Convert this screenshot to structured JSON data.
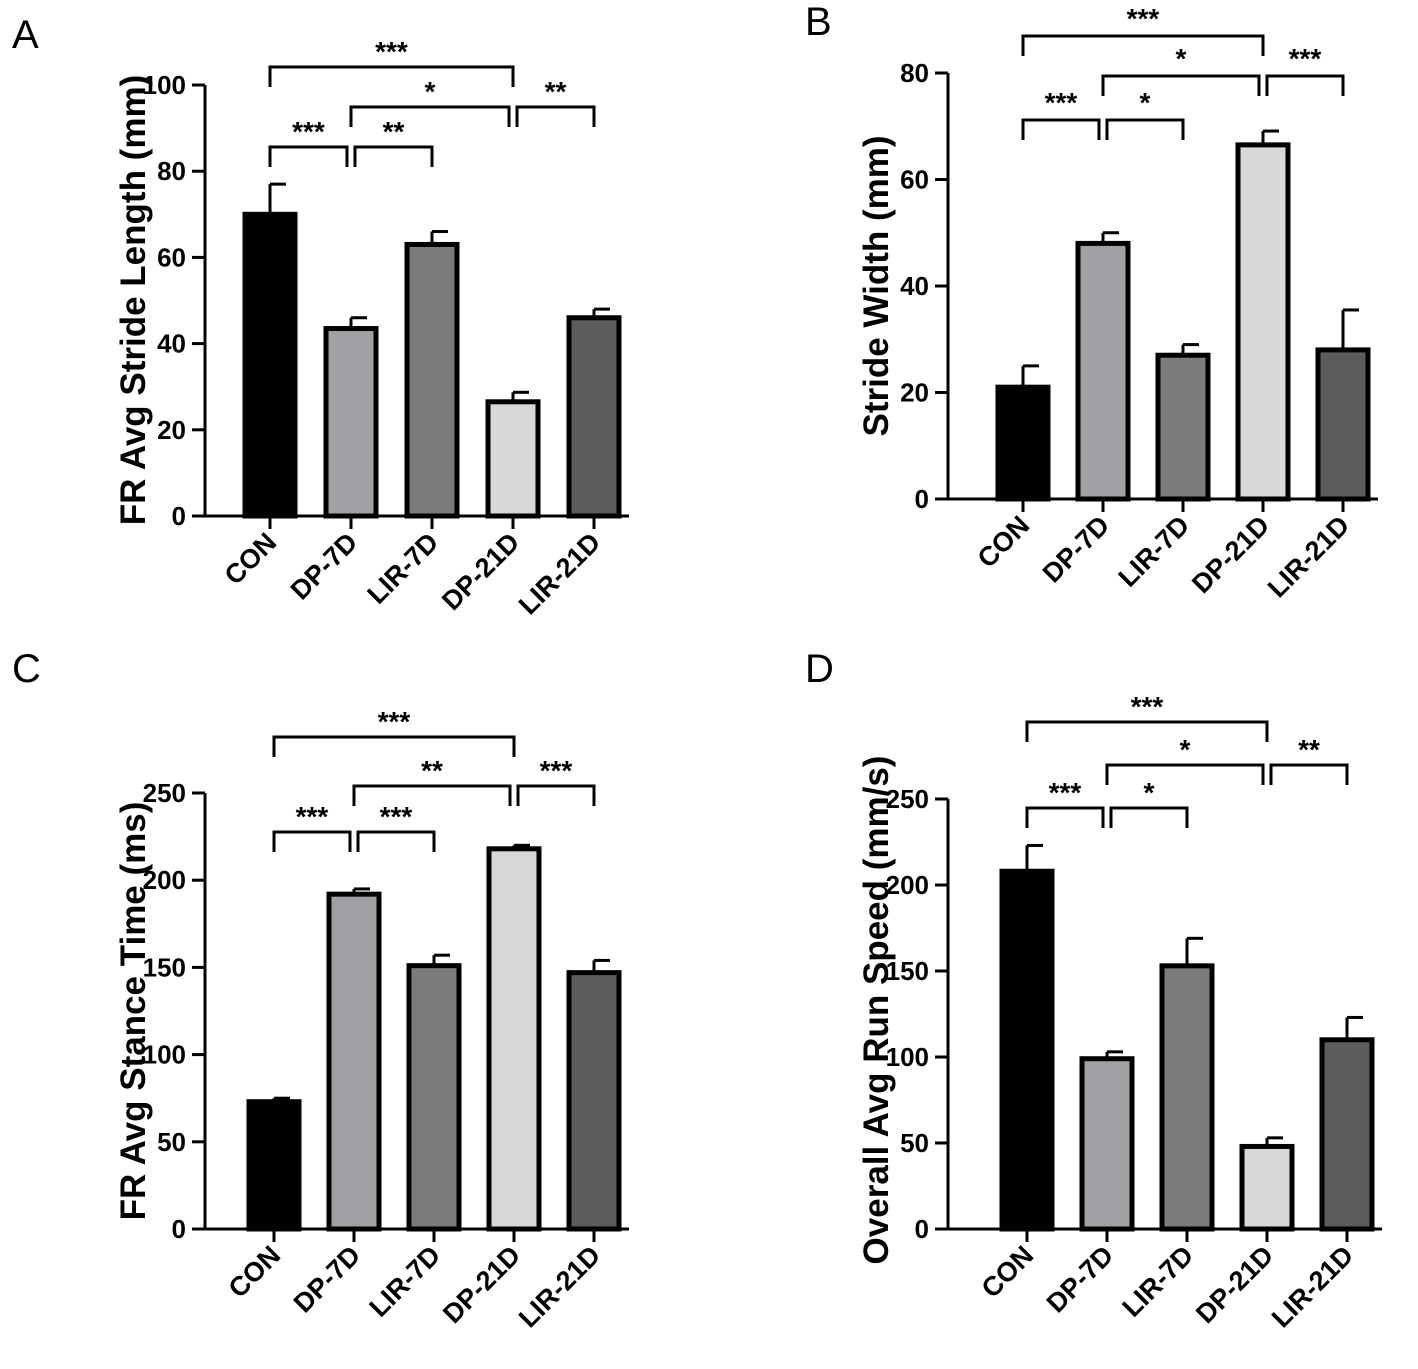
{
  "chart_data": [
    {
      "panel": "A",
      "type": "bar",
      "title": "",
      "xlabel": "",
      "ylabel": "FR Avg Stride Length (mm)",
      "categories": [
        "CON",
        "DP-7D",
        "LIR-7D",
        "DP-21D",
        "LIR-21D"
      ],
      "values": [
        70,
        43.5,
        63,
        26.5,
        46
      ],
      "errors": [
        7,
        2.5,
        3,
        2.2,
        2
      ],
      "colors": [
        "#000000",
        "#a1a1a5",
        "#7b7b7b",
        "#d8d8d8",
        "#5c5c5c"
      ],
      "ylim": [
        0,
        100
      ],
      "yticks": [
        0,
        20,
        40,
        60,
        80,
        100
      ],
      "significance": [
        {
          "from": 0,
          "to": 3,
          "label": "***"
        },
        {
          "from": 1,
          "to": 3,
          "label": "*"
        },
        {
          "from": 3,
          "to": 4,
          "label": "**"
        },
        {
          "from": 0,
          "to": 1,
          "label": "***"
        },
        {
          "from": 1,
          "to": 2,
          "label": "**"
        }
      ]
    },
    {
      "panel": "B",
      "type": "bar",
      "title": "",
      "xlabel": "",
      "ylabel": "Stride Width (mm)",
      "categories": [
        "CON",
        "DP-7D",
        "LIR-7D",
        "DP-21D",
        "LIR-21D"
      ],
      "values": [
        21,
        48,
        27,
        66.5,
        28
      ],
      "errors": [
        4,
        2,
        2,
        2.6,
        7.5
      ],
      "colors": [
        "#000000",
        "#a1a1a5",
        "#7b7b7b",
        "#d8d8d8",
        "#5c5c5c"
      ],
      "ylim": [
        0,
        80
      ],
      "yticks": [
        0,
        20,
        40,
        60,
        80
      ],
      "significance": [
        {
          "from": 0,
          "to": 3,
          "label": "***"
        },
        {
          "from": 1,
          "to": 3,
          "label": "*"
        },
        {
          "from": 3,
          "to": 4,
          "label": "***"
        },
        {
          "from": 0,
          "to": 1,
          "label": "***"
        },
        {
          "from": 1,
          "to": 2,
          "label": "*"
        }
      ]
    },
    {
      "panel": "C",
      "type": "bar",
      "title": "",
      "xlabel": "",
      "ylabel": "FR Avg Stance Time (ms)",
      "categories": [
        "CON",
        "DP-7D",
        "LIR-7D",
        "DP-21D",
        "LIR-21D"
      ],
      "values": [
        73,
        192,
        151,
        218,
        147
      ],
      "errors": [
        2,
        3,
        6,
        2,
        7
      ],
      "colors": [
        "#000000",
        "#a1a1a5",
        "#7b7b7b",
        "#d8d8d8",
        "#5c5c5c"
      ],
      "ylim": [
        0,
        250
      ],
      "yticks": [
        0,
        50,
        100,
        150,
        200,
        250
      ],
      "significance": [
        {
          "from": 0,
          "to": 3,
          "label": "***"
        },
        {
          "from": 1,
          "to": 3,
          "label": "**"
        },
        {
          "from": 3,
          "to": 4,
          "label": "***"
        },
        {
          "from": 0,
          "to": 1,
          "label": "***"
        },
        {
          "from": 1,
          "to": 2,
          "label": "***"
        }
      ]
    },
    {
      "panel": "D",
      "type": "bar",
      "title": "",
      "xlabel": "",
      "ylabel": "Overall Avg Run Speed (mm/s)",
      "categories": [
        "CON",
        "DP-7D",
        "LIR-7D",
        "DP-21D",
        "LIR-21D"
      ],
      "values": [
        208,
        99,
        153,
        48,
        110
      ],
      "errors": [
        15,
        4,
        16,
        5,
        13
      ],
      "colors": [
        "#000000",
        "#a1a1a5",
        "#7b7b7b",
        "#d8d8d8",
        "#5c5c5c"
      ],
      "ylim": [
        0,
        250
      ],
      "yticks": [
        0,
        50,
        100,
        150,
        200,
        250
      ],
      "significance": [
        {
          "from": 0,
          "to": 3,
          "label": "***"
        },
        {
          "from": 1,
          "to": 3,
          "label": "*"
        },
        {
          "from": 3,
          "to": 4,
          "label": "**"
        },
        {
          "from": 0,
          "to": 1,
          "label": "***"
        },
        {
          "from": 1,
          "to": 2,
          "label": "*"
        }
      ]
    }
  ]
}
